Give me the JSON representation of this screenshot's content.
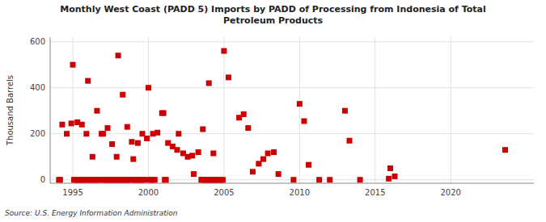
{
  "chart_data": {
    "type": "scatter",
    "title": "Monthly West Coast (PADD 5) Imports by PADD of Processing from Indonesia of Total\nPetroleum Products",
    "ylabel": "Thousand Barrels",
    "annotations": [
      "Source: U.S. Energy Information Administration"
    ],
    "color": "#cc0000",
    "marker": "square",
    "grid": true,
    "xlim": [
      1993.5,
      2025.5
    ],
    "ylim": [
      -15,
      620
    ],
    "xticks": [
      1995,
      2000,
      2005,
      2010,
      2015,
      2020
    ],
    "yticks": [
      0,
      200,
      400,
      600
    ],
    "x": [
      1994.3,
      1994.6,
      1994.9,
      1995.0,
      1995.3,
      1995.6,
      1995.9,
      1996.0,
      1996.3,
      1996.6,
      1996.9,
      1997.0,
      1997.3,
      1997.6,
      1997.9,
      1998.0,
      1998.3,
      1998.6,
      1998.9,
      1999.0,
      1999.3,
      1999.6,
      1999.9,
      2000.0,
      2000.3,
      2000.6,
      2000.9,
      2001.0,
      2001.3,
      2001.6,
      2001.9,
      2002.0,
      2002.3,
      2002.6,
      2002.9,
      2003.0,
      2003.3,
      2003.6,
      2004.0,
      2004.3,
      2005.0,
      2005.3,
      2006.0,
      2006.3,
      2006.6,
      2006.9,
      2007.3,
      2007.6,
      2007.9,
      2008.3,
      2008.6,
      2009.6,
      2010.0,
      2010.3,
      2010.6,
      2011.3,
      2012.0,
      2013.0,
      2013.3,
      2014.0,
      2015.9,
      2016.0,
      2016.3,
      2023.6,
      1994.08,
      1994.16,
      1995.08,
      1995.16,
      1995.25,
      1995.33,
      1995.42,
      1995.5,
      1995.58,
      1995.66,
      1995.75,
      1995.83,
      1996.0,
      1996.08,
      1996.16,
      1996.25,
      1996.33,
      1996.42,
      1996.5,
      1996.58,
      1996.66,
      1996.75,
      1997.0,
      1997.08,
      1997.16,
      1997.25,
      1997.33,
      1997.42,
      1997.5,
      1997.58,
      1997.66,
      1997.75,
      1997.83,
      1997.92,
      1998.0,
      1998.08,
      1998.16,
      1998.25,
      1998.33,
      1998.42,
      1998.5,
      1998.58,
      1998.66,
      1998.75,
      1999.0,
      1999.08,
      1999.16,
      1999.25,
      1999.33,
      1999.42,
      1999.5,
      1999.58,
      1999.66,
      1999.75,
      2000.08,
      2000.16,
      2000.25,
      2000.33,
      2000.42,
      2001.08,
      2001.16,
      2003.5,
      2003.58,
      2003.66,
      2003.75,
      2003.83,
      2003.92,
      2004.0,
      2004.08,
      2004.16,
      2004.25,
      2004.33,
      2004.42,
      2004.5,
      2004.58,
      2004.66,
      2004.75,
      2004.83,
      2004.92
    ],
    "values": [
      240,
      200,
      245,
      500,
      250,
      240,
      200,
      430,
      100,
      300,
      200,
      200,
      225,
      155,
      100,
      540,
      370,
      230,
      165,
      90,
      160,
      200,
      180,
      400,
      200,
      205,
      290,
      290,
      160,
      145,
      130,
      200,
      115,
      100,
      105,
      25,
      120,
      220,
      420,
      115,
      560,
      445,
      270,
      285,
      225,
      35,
      70,
      90,
      115,
      120,
      25,
      0,
      330,
      255,
      65,
      0,
      0,
      300,
      170,
      0,
      5,
      50,
      15,
      130,
      0,
      0,
      0,
      0,
      0,
      0,
      0,
      0,
      0,
      0,
      0,
      0,
      0,
      0,
      0,
      0,
      0,
      0,
      0,
      0,
      0,
      0,
      0,
      0,
      0,
      0,
      0,
      0,
      0,
      0,
      0,
      0,
      0,
      0,
      0,
      0,
      0,
      0,
      0,
      0,
      0,
      0,
      0,
      0,
      0,
      0,
      0,
      0,
      0,
      0,
      0,
      0,
      0,
      0,
      0,
      0,
      0,
      0,
      0,
      0,
      0,
      0,
      0,
      0,
      0,
      0,
      0,
      0,
      0,
      0,
      0,
      0,
      0,
      0,
      0,
      0,
      0,
      0,
      0
    ]
  }
}
